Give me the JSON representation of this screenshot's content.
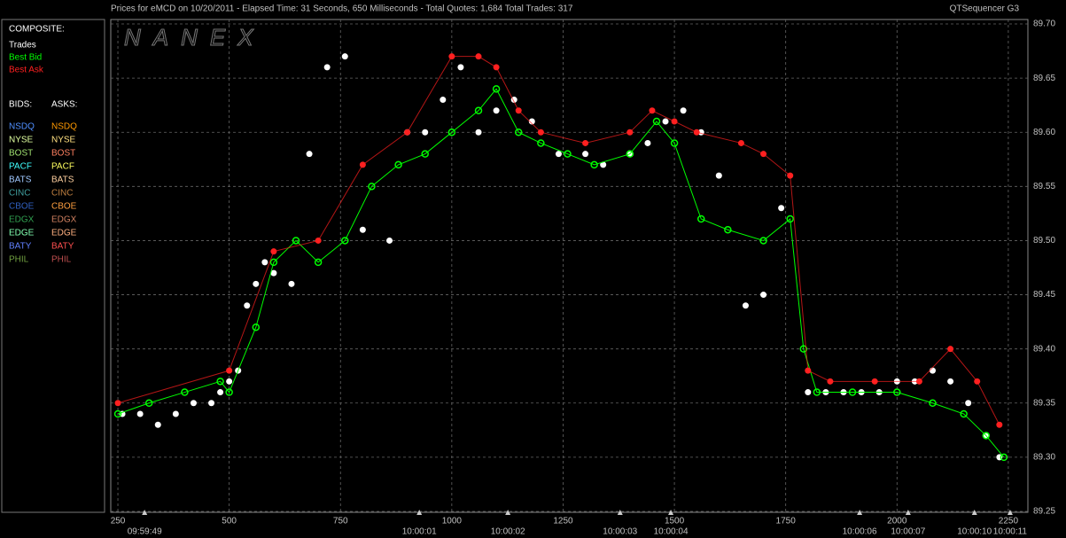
{
  "chart_data": {
    "type": "quote-sequence",
    "title": "Prices for  eMCD  on  10/20/2011  -  Elapsed Time: 31 Seconds, 650 Milliseconds  -  Total Quotes: 1,684  Total Trades: 317",
    "brand": "QTSequencer G3",
    "watermark": "NANEX",
    "composite_label": "COMPOSITE:",
    "bids_label": "BIDS:",
    "asks_label": "ASKS:",
    "series": [
      {
        "name": "Trades",
        "color": "#ffffff",
        "marker": "dot",
        "x": [
          260,
          300,
          340,
          380,
          420,
          460,
          480,
          500,
          520,
          540,
          560,
          580,
          600,
          640,
          680,
          720,
          760,
          800,
          860,
          900,
          940,
          980,
          1020,
          1060,
          1100,
          1140,
          1180,
          1240,
          1300,
          1340,
          1400,
          1440,
          1480,
          1520,
          1560,
          1600,
          1660,
          1700,
          1740,
          1800,
          1840,
          1880,
          1920,
          1960,
          2000,
          2040,
          2080,
          2120,
          2160,
          2200,
          2230
        ],
        "values": [
          89.34,
          89.34,
          89.33,
          89.34,
          89.35,
          89.35,
          89.36,
          89.37,
          89.38,
          89.44,
          89.46,
          89.48,
          89.47,
          89.46,
          89.58,
          89.66,
          89.67,
          89.51,
          89.5,
          89.6,
          89.6,
          89.63,
          89.66,
          89.6,
          89.62,
          89.63,
          89.61,
          89.58,
          89.58,
          89.57,
          89.58,
          89.59,
          89.61,
          89.62,
          89.6,
          89.56,
          89.44,
          89.45,
          89.53,
          89.36,
          89.36,
          89.36,
          89.36,
          89.36,
          89.37,
          89.37,
          89.38,
          89.37,
          89.35,
          89.32,
          89.3
        ]
      },
      {
        "name": "Best Bid",
        "color": "#00ff00",
        "marker": "ring",
        "x": [
          250,
          320,
          400,
          480,
          500,
          560,
          600,
          650,
          700,
          760,
          820,
          880,
          940,
          1000,
          1060,
          1100,
          1150,
          1200,
          1260,
          1320,
          1400,
          1460,
          1500,
          1560,
          1620,
          1700,
          1760,
          1790,
          1820,
          1900,
          2000,
          2080,
          2150,
          2200,
          2240
        ],
        "values": [
          89.34,
          89.35,
          89.36,
          89.37,
          89.36,
          89.42,
          89.48,
          89.5,
          89.48,
          89.5,
          89.55,
          89.57,
          89.58,
          89.6,
          89.62,
          89.64,
          89.6,
          89.59,
          89.58,
          89.57,
          89.58,
          89.61,
          89.59,
          89.52,
          89.51,
          89.5,
          89.52,
          89.4,
          89.36,
          89.36,
          89.36,
          89.35,
          89.34,
          89.32,
          89.3
        ]
      },
      {
        "name": "Best Ask",
        "color": "#ff2020",
        "marker": "dot",
        "x": [
          250,
          500,
          600,
          700,
          800,
          900,
          1000,
          1060,
          1100,
          1150,
          1200,
          1300,
          1400,
          1450,
          1500,
          1550,
          1650,
          1700,
          1760,
          1800,
          1850,
          1950,
          2050,
          2120,
          2180,
          2230
        ],
        "values": [
          89.35,
          89.38,
          89.49,
          89.5,
          89.57,
          89.6,
          89.67,
          89.67,
          89.66,
          89.62,
          89.6,
          89.59,
          89.6,
          89.62,
          89.61,
          89.6,
          89.59,
          89.58,
          89.56,
          89.38,
          89.37,
          89.37,
          89.37,
          89.4,
          89.37,
          89.33
        ]
      }
    ],
    "bids": [
      {
        "name": "NSDQ",
        "color": "#4f8fff"
      },
      {
        "name": "NYSE",
        "color": "#e0ffa0"
      },
      {
        "name": "BOST",
        "color": "#a0e070"
      },
      {
        "name": "PACF",
        "color": "#40ffff"
      },
      {
        "name": "BATS",
        "color": "#a0c8ff"
      },
      {
        "name": "CINC",
        "color": "#40a0a0"
      },
      {
        "name": "CBOE",
        "color": "#3060c0"
      },
      {
        "name": "EDGX",
        "color": "#30a050"
      },
      {
        "name": "EDGE",
        "color": "#80ffb0"
      },
      {
        "name": "BATY",
        "color": "#6080ff"
      },
      {
        "name": "PHIL",
        "color": "#70a040"
      }
    ],
    "asks": [
      {
        "name": "NSDQ",
        "color": "#ff9900"
      },
      {
        "name": "NYSE",
        "color": "#ffe080"
      },
      {
        "name": "BOST",
        "color": "#ff8060"
      },
      {
        "name": "PACF",
        "color": "#ffff60"
      },
      {
        "name": "BATS",
        "color": "#ffd0a0"
      },
      {
        "name": "CINC",
        "color": "#c08040"
      },
      {
        "name": "CBOE",
        "color": "#ffa040"
      },
      {
        "name": "EDGX",
        "color": "#d08060"
      },
      {
        "name": "EDGE",
        "color": "#ffb080"
      },
      {
        "name": "BATY",
        "color": "#ff5050"
      },
      {
        "name": "PHIL",
        "color": "#c05050"
      }
    ],
    "xlim": [
      234,
      2294
    ],
    "xticks": [
      250,
      500,
      750,
      1000,
      1250,
      1500,
      1750,
      2000,
      2250
    ],
    "time_ticks": [
      {
        "value": 310,
        "label": "09:59:49"
      },
      {
        "value": 927,
        "label": "10:00:01"
      },
      {
        "value": 1126,
        "label": "10:00:02"
      },
      {
        "value": 1378,
        "label": "10:00:03"
      },
      {
        "value": 1492,
        "label": "10:00:04"
      },
      {
        "value": 1916,
        "label": "10:00:06"
      },
      {
        "value": 2025,
        "label": "10:00:07"
      },
      {
        "value": 2174,
        "label": "10:00:10"
      },
      {
        "value": 2254,
        "label": "10:00:11"
      }
    ],
    "ylim": [
      89.25,
      89.7
    ],
    "yticks": [
      89.25,
      {
        "value": 89.3,
        "label": "89.30"
      },
      89.35,
      {
        "value": 89.4,
        "label": "89.40"
      },
      89.45,
      {
        "value": 89.5,
        "label": "89.50"
      },
      89.55,
      {
        "value": 89.6,
        "label": "89.60"
      },
      89.65,
      {
        "value": 89.7,
        "label": "89.70"
      }
    ],
    "grid": true
  }
}
